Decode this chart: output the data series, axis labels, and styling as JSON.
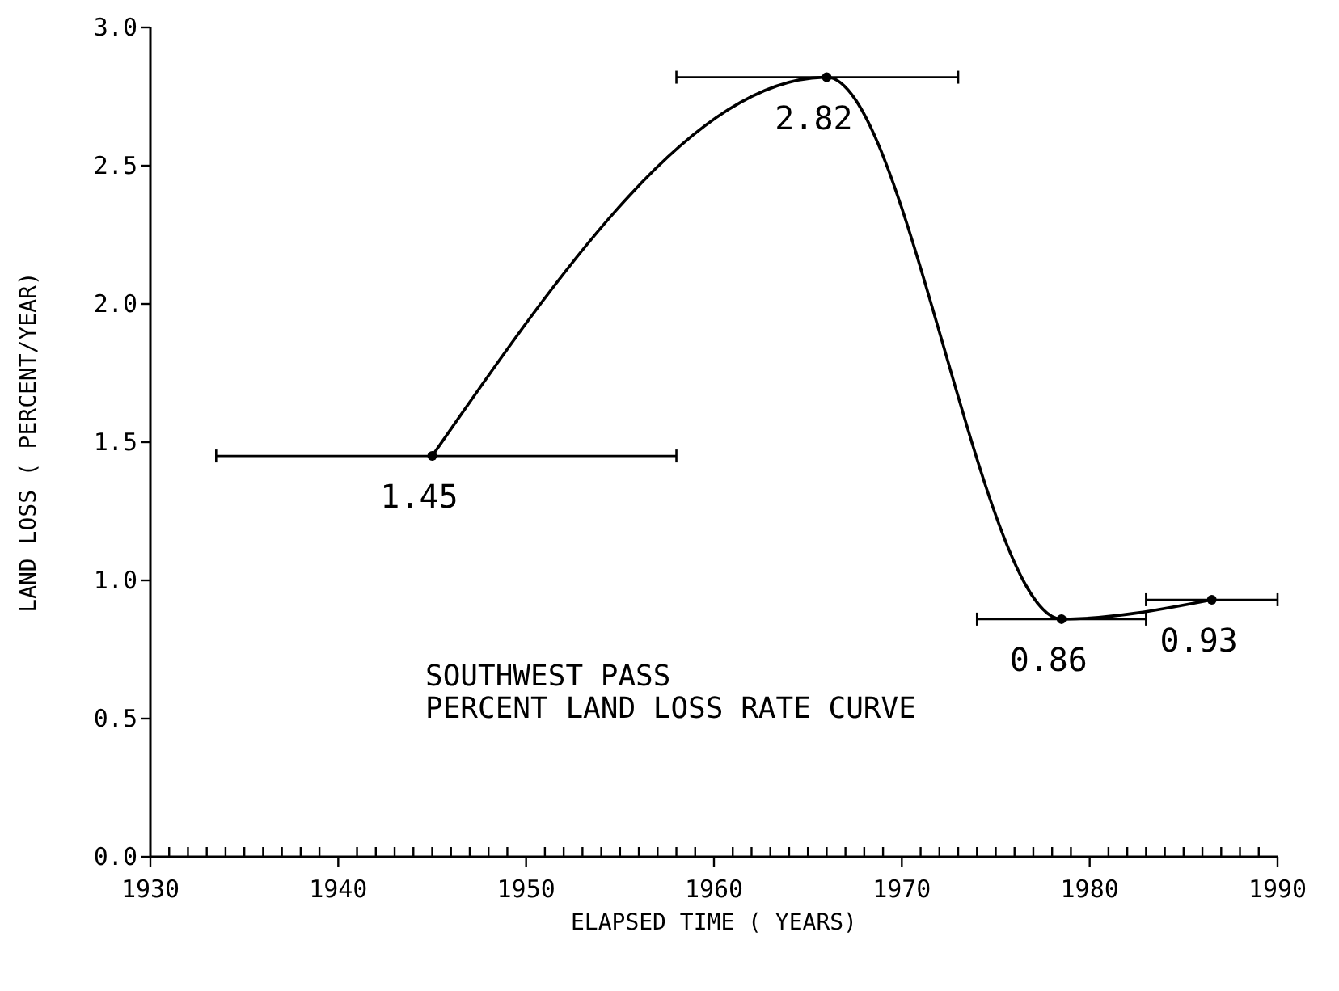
{
  "chart_data": {
    "type": "line",
    "title": "SOUTHWEST PASS",
    "subtitle": "PERCENT LAND LOSS RATE CURVE",
    "xlabel": "ELAPSED TIME ( YEARS)",
    "ylabel": "LAND LOSS ( PERCENT/YEAR)",
    "x": [
      1945,
      1966,
      1978.5,
      1986.5
    ],
    "series": [
      {
        "color": "#000000",
        "values": [
          1.45,
          2.82,
          0.86,
          0.93
        ],
        "xerrors": [
          [
            1933.5,
            1958
          ],
          [
            1958,
            1973
          ],
          [
            1974,
            1983
          ],
          [
            1983,
            1990
          ]
        ]
      }
    ],
    "data_labels": true,
    "marker": "circle",
    "line_style": "solid",
    "grid": false,
    "xlim": [
      1930,
      1990
    ],
    "ylim": [
      0,
      3
    ],
    "xticks": [
      1930,
      {
        "value": 1931,
        "label": null
      },
      {
        "value": 1932,
        "label": null
      },
      {
        "value": 1933,
        "label": null
      },
      {
        "value": 1934,
        "label": null
      },
      {
        "value": 1935,
        "label": null
      },
      {
        "value": 1936,
        "label": null
      },
      {
        "value": 1937,
        "label": null
      },
      {
        "value": 1938,
        "label": null
      },
      {
        "value": 1939,
        "label": null
      },
      1940,
      {
        "value": 1941,
        "label": null
      },
      {
        "value": 1942,
        "label": null
      },
      {
        "value": 1943,
        "label": null
      },
      {
        "value": 1944,
        "label": null
      },
      {
        "value": 1945,
        "label": null
      },
      {
        "value": 1946,
        "label": null
      },
      {
        "value": 1947,
        "label": null
      },
      {
        "value": 1948,
        "label": null
      },
      {
        "value": 1949,
        "label": null
      },
      1950,
      {
        "value": 1951,
        "label": null
      },
      {
        "value": 1952,
        "label": null
      },
      {
        "value": 1953,
        "label": null
      },
      {
        "value": 1954,
        "label": null
      },
      {
        "value": 1955,
        "label": null
      },
      {
        "value": 1956,
        "label": null
      },
      {
        "value": 1957,
        "label": null
      },
      {
        "value": 1958,
        "label": null
      },
      {
        "value": 1959,
        "label": null
      },
      1960,
      {
        "value": 1961,
        "label": null
      },
      {
        "value": 1962,
        "label": null
      },
      {
        "value": 1963,
        "label": null
      },
      {
        "value": 1964,
        "label": null
      },
      {
        "value": 1965,
        "label": null
      },
      {
        "value": 1966,
        "label": null
      },
      {
        "value": 1967,
        "label": null
      },
      {
        "value": 1968,
        "label": null
      },
      {
        "value": 1969,
        "label": null
      },
      1970,
      {
        "value": 1971,
        "label": null
      },
      {
        "value": 1972,
        "label": null
      },
      {
        "value": 1973,
        "label": null
      },
      {
        "value": 1974,
        "label": null
      },
      {
        "value": 1975,
        "label": null
      },
      {
        "value": 1976,
        "label": null
      },
      {
        "value": 1977,
        "label": null
      },
      {
        "value": 1978,
        "label": null
      },
      {
        "value": 1979,
        "label": null
      },
      1980,
      {
        "value": 1981,
        "label": null
      },
      {
        "value": 1982,
        "label": null
      },
      {
        "value": 1983,
        "label": null
      },
      {
        "value": 1984,
        "label": null
      },
      {
        "value": 1985,
        "label": null
      },
      {
        "value": 1986,
        "label": null
      },
      {
        "value": 1987,
        "label": null
      },
      {
        "value": 1988,
        "label": null
      },
      {
        "value": 1989,
        "label": null
      },
      1990
    ],
    "yticks": [
      {
        "value": 0,
        "label": "0.0"
      },
      {
        "value": 0.5,
        "label": "0.5"
      },
      {
        "value": 1,
        "label": "1.0"
      },
      {
        "value": 1.5,
        "label": "1.5"
      },
      {
        "value": 2,
        "label": "2.0"
      },
      {
        "value": 2.5,
        "label": "2.5"
      },
      {
        "value": 3,
        "label": "3.0"
      }
    ]
  }
}
